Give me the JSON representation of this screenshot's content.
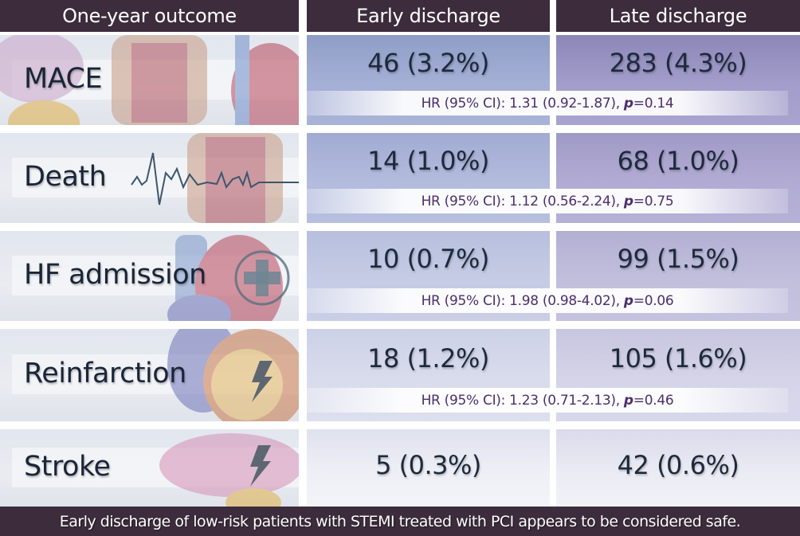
{
  "colors": {
    "header_bg": "#3c2c3c",
    "label_text": "#1a2538",
    "hr_text": "#4b2f6b",
    "early_cell": "#a5b0d6",
    "late_cell": "#a39dcb"
  },
  "header": {
    "outcome": "One-year outcome",
    "early": "Early discharge",
    "late": "Late discharge"
  },
  "rows": [
    {
      "label": "MACE",
      "icon": "organs-heart-brain-illustration",
      "early": "46 (3.2%)",
      "late": "283 (4.3%)",
      "hr_prefix": "HR (95% CI): 1.31 (0.92-1.87), ",
      "p_label": "p",
      "p_value": "=0.14"
    },
    {
      "label": "Death",
      "icon": "ecg-line-icon",
      "early": "14 (1.0%)",
      "late": "68 (1.0%)",
      "hr_prefix": "HR (95% CI): 1.12 (0.56-2.24), ",
      "p_label": "p",
      "p_value": "=0.75"
    },
    {
      "label": "HF admission",
      "icon": "medical-cross-icon",
      "early": "10 (0.7%)",
      "late": "99 (1.5%)",
      "hr_prefix": "HR (95% CI): 1.98 (0.98-4.02), ",
      "p_label": "p",
      "p_value": "=0.06"
    },
    {
      "label": "Reinfarction",
      "icon": "lightning-bolt-icon",
      "early": "18 (1.2%)",
      "late": "105 (1.6%)",
      "hr_prefix": "HR (95% CI): 1.23 (0.71-2.13), ",
      "p_label": "p",
      "p_value": "=0.46"
    },
    {
      "label": "Stroke",
      "icon": "lightning-bolt-icon",
      "early": "5 (0.3%)",
      "late": "42 (0.6%)"
    }
  ],
  "footer": "Early discharge of low-risk patients with STEMI treated with PCI appears to be considered safe."
}
